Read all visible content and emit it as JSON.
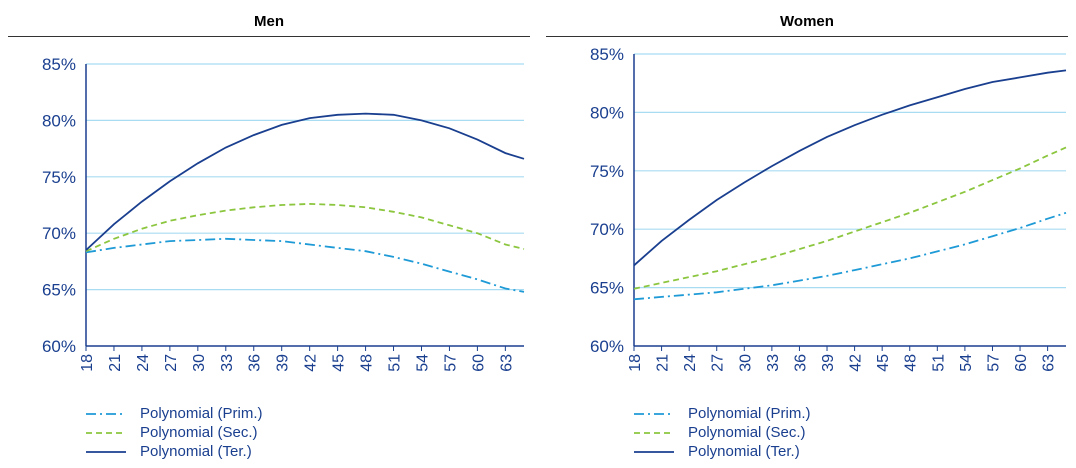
{
  "chart_data": [
    {
      "type": "line",
      "title": "Men",
      "x": [
        18,
        21,
        24,
        27,
        30,
        33,
        36,
        39,
        42,
        45,
        48,
        51,
        54,
        57,
        60,
        63
      ],
      "xlim": [
        18,
        65
      ],
      "ylim": [
        60,
        85
      ],
      "yticks": [
        "60%",
        "65%",
        "70%",
        "75%",
        "80%",
        "85%"
      ],
      "xticks": [
        "18",
        "21",
        "24",
        "27",
        "30",
        "33",
        "36",
        "39",
        "42",
        "45",
        "48",
        "51",
        "54",
        "57",
        "60",
        "63"
      ],
      "grid": "horizontal",
      "legend_position": "bottom-left",
      "series": [
        {
          "name": "Polynomial (Prim.)",
          "style": "dashdot",
          "color": "#1e9ad6",
          "points": [
            [
              18,
              68.3
            ],
            [
              21,
              68.7
            ],
            [
              24,
              69.0
            ],
            [
              27,
              69.3
            ],
            [
              30,
              69.4
            ],
            [
              33,
              69.5
            ],
            [
              36,
              69.4
            ],
            [
              39,
              69.3
            ],
            [
              42,
              69.0
            ],
            [
              45,
              68.7
            ],
            [
              48,
              68.4
            ],
            [
              51,
              67.9
            ],
            [
              54,
              67.3
            ],
            [
              57,
              66.6
            ],
            [
              60,
              65.9
            ],
            [
              63,
              65.1
            ],
            [
              65,
              64.8
            ]
          ]
        },
        {
          "name": "Polynomial (Sec.)",
          "style": "dashed",
          "color": "#8cc63f",
          "points": [
            [
              18,
              68.4
            ],
            [
              21,
              69.5
            ],
            [
              24,
              70.4
            ],
            [
              27,
              71.1
            ],
            [
              30,
              71.6
            ],
            [
              33,
              72.0
            ],
            [
              36,
              72.3
            ],
            [
              39,
              72.5
            ],
            [
              42,
              72.6
            ],
            [
              45,
              72.5
            ],
            [
              48,
              72.3
            ],
            [
              51,
              71.9
            ],
            [
              54,
              71.4
            ],
            [
              57,
              70.7
            ],
            [
              60,
              70.0
            ],
            [
              63,
              69.0
            ],
            [
              65,
              68.6
            ]
          ]
        },
        {
          "name": "Polynomial (Ter.)",
          "style": "solid",
          "color": "#1a3f8f",
          "points": [
            [
              18,
              68.5
            ],
            [
              21,
              70.8
            ],
            [
              24,
              72.8
            ],
            [
              27,
              74.6
            ],
            [
              30,
              76.2
            ],
            [
              33,
              77.6
            ],
            [
              36,
              78.7
            ],
            [
              39,
              79.6
            ],
            [
              42,
              80.2
            ],
            [
              45,
              80.5
            ],
            [
              48,
              80.6
            ],
            [
              51,
              80.5
            ],
            [
              54,
              80.0
            ],
            [
              57,
              79.3
            ],
            [
              60,
              78.3
            ],
            [
              63,
              77.1
            ],
            [
              65,
              76.6
            ]
          ]
        }
      ]
    },
    {
      "type": "line",
      "title": "Women",
      "x": [
        18,
        21,
        24,
        27,
        30,
        33,
        36,
        39,
        42,
        45,
        48,
        51,
        54,
        57,
        60,
        63
      ],
      "xlim": [
        18,
        65
      ],
      "ylim": [
        60,
        85
      ],
      "yticks": [
        "60%",
        "65%",
        "70%",
        "75%",
        "80%",
        "85%"
      ],
      "xticks": [
        "18",
        "21",
        "24",
        "27",
        "30",
        "33",
        "36",
        "39",
        "42",
        "45",
        "48",
        "51",
        "54",
        "57",
        "60",
        "63"
      ],
      "grid": "horizontal",
      "legend_position": "bottom-left",
      "series": [
        {
          "name": "Polynomial (Prim.)",
          "style": "dashdot",
          "color": "#1e9ad6",
          "points": [
            [
              18,
              64.0
            ],
            [
              21,
              64.2
            ],
            [
              24,
              64.4
            ],
            [
              27,
              64.6
            ],
            [
              30,
              64.9
            ],
            [
              33,
              65.2
            ],
            [
              36,
              65.6
            ],
            [
              39,
              66.0
            ],
            [
              42,
              66.5
            ],
            [
              45,
              67.0
            ],
            [
              48,
              67.5
            ],
            [
              51,
              68.1
            ],
            [
              54,
              68.7
            ],
            [
              57,
              69.4
            ],
            [
              60,
              70.1
            ],
            [
              63,
              70.9
            ],
            [
              65,
              71.4
            ]
          ]
        },
        {
          "name": "Polynomial (Sec.)",
          "style": "dashed",
          "color": "#8cc63f",
          "points": [
            [
              18,
              64.9
            ],
            [
              21,
              65.4
            ],
            [
              24,
              65.9
            ],
            [
              27,
              66.4
            ],
            [
              30,
              67.0
            ],
            [
              33,
              67.6
            ],
            [
              36,
              68.3
            ],
            [
              39,
              69.0
            ],
            [
              42,
              69.8
            ],
            [
              45,
              70.6
            ],
            [
              48,
              71.4
            ],
            [
              51,
              72.3
            ],
            [
              54,
              73.2
            ],
            [
              57,
              74.2
            ],
            [
              60,
              75.2
            ],
            [
              63,
              76.3
            ],
            [
              65,
              77.0
            ]
          ]
        },
        {
          "name": "Polynomial (Ter.)",
          "style": "solid",
          "color": "#1a3f8f",
          "points": [
            [
              18,
              66.9
            ],
            [
              21,
              69.0
            ],
            [
              24,
              70.8
            ],
            [
              27,
              72.5
            ],
            [
              30,
              74.0
            ],
            [
              33,
              75.4
            ],
            [
              36,
              76.7
            ],
            [
              39,
              77.9
            ],
            [
              42,
              78.9
            ],
            [
              45,
              79.8
            ],
            [
              48,
              80.6
            ],
            [
              51,
              81.3
            ],
            [
              54,
              82.0
            ],
            [
              57,
              82.6
            ],
            [
              60,
              83.0
            ],
            [
              63,
              83.4
            ],
            [
              65,
              83.6
            ]
          ]
        }
      ]
    }
  ]
}
